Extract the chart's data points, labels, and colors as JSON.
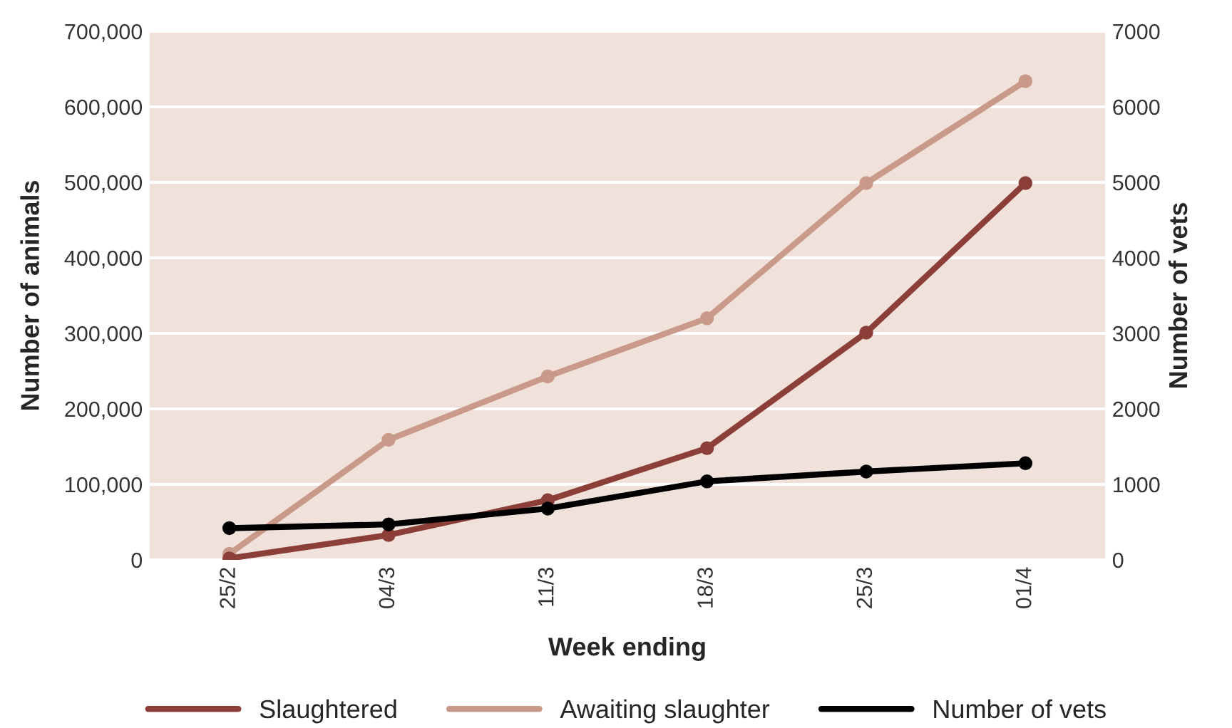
{
  "chart_data": {
    "type": "line",
    "xlabel": "Week ending",
    "ylabel": "Number of animals",
    "y2label": "Number of vets",
    "categories": [
      "25/2",
      "04/3",
      "11/3",
      "18/3",
      "25/3",
      "01/4"
    ],
    "series": [
      {
        "name": "Slaughtered",
        "color": "#8b3f38",
        "values": [
          2000,
          33000,
          79000,
          148000,
          301000,
          499000
        ]
      },
      {
        "name": "Awaiting slaughter",
        "color": "#c99a8a",
        "values": [
          8000,
          159000,
          243000,
          320000,
          499000,
          634000
        ]
      },
      {
        "name": "Number of vets",
        "color": "#000000",
        "axis": "y2",
        "values": [
          420,
          470,
          680,
          1040,
          1170,
          1280
        ]
      }
    ],
    "ylim": [
      0,
      700000
    ],
    "yticks": [
      {
        "value": 0,
        "label": "0"
      },
      {
        "value": 100000,
        "label": "100,000"
      },
      {
        "value": 200000,
        "label": "200,000"
      },
      {
        "value": 300000,
        "label": "300,000"
      },
      {
        "value": 400000,
        "label": "400,000"
      },
      {
        "value": 500000,
        "label": "500,000"
      },
      {
        "value": 600000,
        "label": "600,000"
      },
      {
        "value": 700000,
        "label": "700,000"
      }
    ],
    "y2lim": [
      0,
      7000
    ],
    "y2ticks": [
      0,
      1000,
      2000,
      3000,
      4000,
      5000,
      6000,
      7000
    ],
    "grid": "y",
    "legend": "bottom",
    "marker": "circle",
    "line_style": "solid"
  }
}
